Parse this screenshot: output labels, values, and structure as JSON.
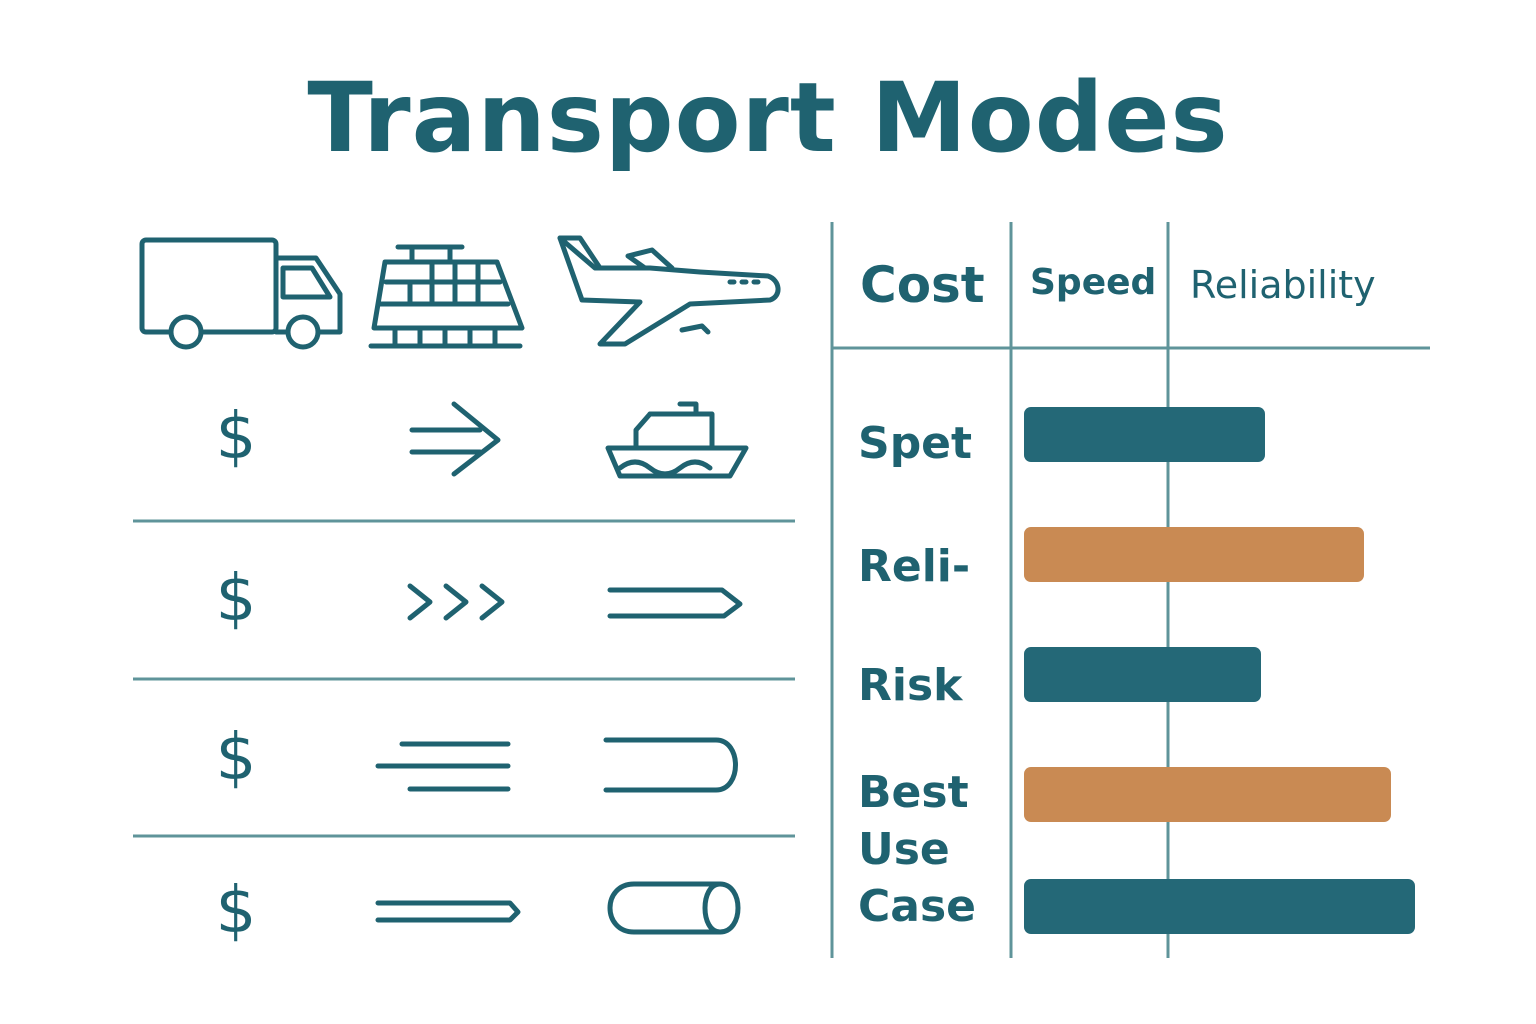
{
  "title": "Transport Modes",
  "legend_symbol": "$",
  "table": {
    "headers": [
      "Cost",
      "Speed",
      "Reliability"
    ],
    "row_labels": [
      "Spet",
      "Reli-",
      "Risk",
      "Best Use Case"
    ]
  },
  "chart_data": {
    "type": "bar",
    "orientation": "horizontal",
    "categories": [
      "Spet",
      "Reli-",
      "Risk",
      "Best Use Case (1)",
      "Best Use Case (2)"
    ],
    "values": [
      0.61,
      0.86,
      0.6,
      0.93,
      0.99
    ],
    "colors": [
      "#246877",
      "#c98a53",
      "#246877",
      "#c98a53",
      "#246877"
    ]
  },
  "colors": {
    "primary": "#1f6270",
    "accent": "#c98a53",
    "rule": "#5f949a"
  },
  "icons": [
    "truck-icon",
    "train-icon",
    "airplane-icon",
    "dollar-icon",
    "arrow-right-icon",
    "ship-icon",
    "dollar-icon",
    "triple-chevron-icon",
    "long-arrow-icon",
    "dollar-icon",
    "speed-lines-icon",
    "rounded-bracket-icon",
    "dollar-icon",
    "pencil-icon",
    "cylinder-icon"
  ]
}
